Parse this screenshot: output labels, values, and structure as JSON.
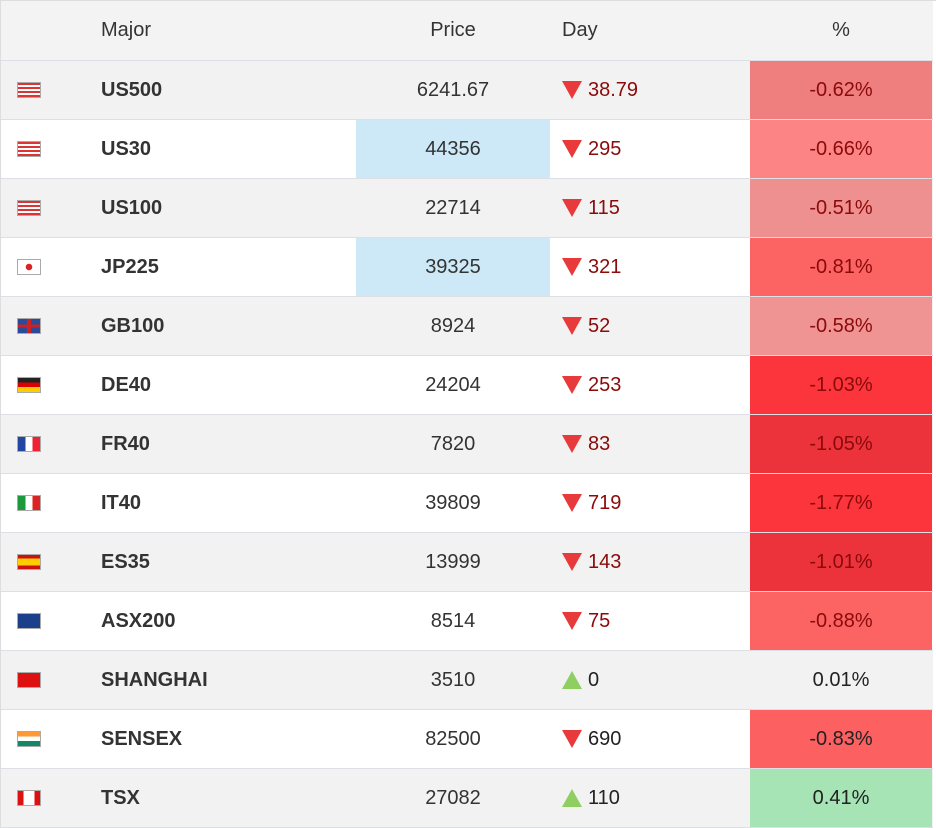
{
  "header": {
    "major": "Major",
    "price": "Price",
    "day": "Day",
    "pct": "%"
  },
  "rows": [
    {
      "flag": "us",
      "name": "US500",
      "price": "6241.67",
      "dir": "down",
      "day": "38.79",
      "pct": "-0.62%",
      "pct_bg": "#ef7f7f",
      "price_hl": false
    },
    {
      "flag": "us",
      "name": "US30",
      "price": "44356",
      "dir": "down",
      "day": "295",
      "pct": "-0.66%",
      "pct_bg": "#fd8484",
      "price_hl": true
    },
    {
      "flag": "us",
      "name": "US100",
      "price": "22714",
      "dir": "down",
      "day": "115",
      "pct": "-0.51%",
      "pct_bg": "#ef9090",
      "price_hl": false
    },
    {
      "flag": "jp",
      "name": "JP225",
      "price": "39325",
      "dir": "down",
      "day": "321",
      "pct": "-0.81%",
      "pct_bg": "#fc6464",
      "price_hl": true
    },
    {
      "flag": "gb",
      "name": "GB100",
      "price": "8924",
      "dir": "down",
      "day": "52",
      "pct": "-0.58%",
      "pct_bg": "#ef9393",
      "price_hl": false
    },
    {
      "flag": "de",
      "name": "DE40",
      "price": "24204",
      "dir": "down",
      "day": "253",
      "pct": "-1.03%",
      "pct_bg": "#fc343c",
      "price_hl": false
    },
    {
      "flag": "fr",
      "name": "FR40",
      "price": "7820",
      "dir": "down",
      "day": "83",
      "pct": "-1.05%",
      "pct_bg": "#ec323a",
      "price_hl": false
    },
    {
      "flag": "it",
      "name": "IT40",
      "price": "39809",
      "dir": "down",
      "day": "719",
      "pct": "-1.77%",
      "pct_bg": "#fc343c",
      "price_hl": false
    },
    {
      "flag": "es",
      "name": "ES35",
      "price": "13999",
      "dir": "down",
      "day": "143",
      "pct": "-1.01%",
      "pct_bg": "#ec323a",
      "price_hl": false
    },
    {
      "flag": "au",
      "name": "ASX200",
      "price": "8514",
      "dir": "down",
      "day": "75",
      "pct": "-0.88%",
      "pct_bg": "#fc6464",
      "price_hl": false
    },
    {
      "flag": "cn",
      "name": "SHANGHAI",
      "price": "3510",
      "dir": "up",
      "day": "0",
      "pct": "0.01%",
      "pct_bg": "",
      "price_hl": false
    },
    {
      "flag": "in",
      "name": "SENSEX",
      "price": "82500",
      "dir": "down",
      "day": "690",
      "pct": "-0.83%",
      "pct_bg": "#fc6060",
      "price_hl": false
    },
    {
      "flag": "ca",
      "name": "TSX",
      "price": "27082",
      "dir": "up",
      "day": "110",
      "pct": "0.41%",
      "pct_bg": "#a6e3b5",
      "price_hl": false
    }
  ],
  "colors": {
    "down_text": "#8b0a0a",
    "up_text": "#222222",
    "price_highlight": "#cde9f7",
    "row_alt": "#f2f2f2"
  }
}
